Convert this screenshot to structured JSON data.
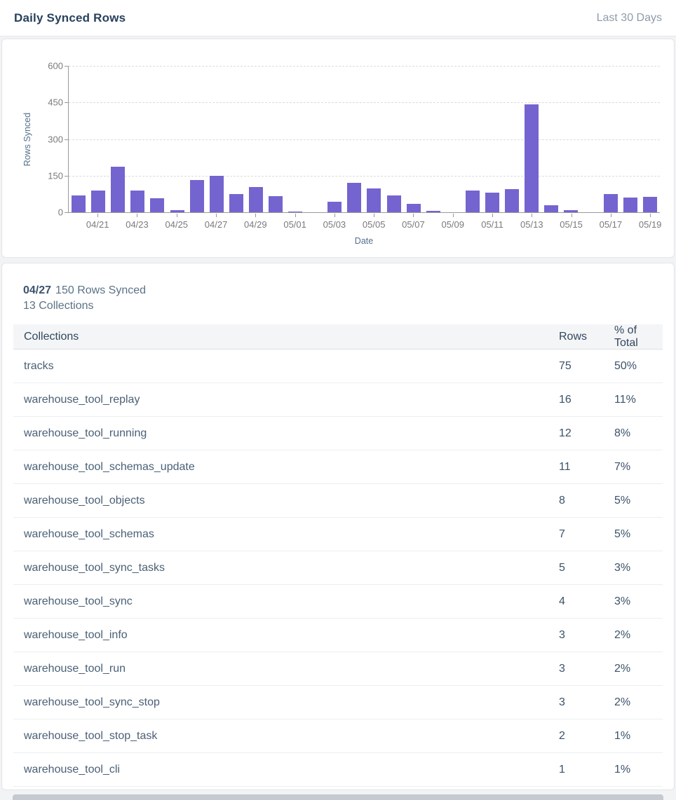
{
  "header": {
    "title": "Daily Synced Rows",
    "range_label": "Last 30 Days"
  },
  "chart_data": {
    "type": "bar",
    "title": "Daily Synced Rows",
    "xlabel": "Date",
    "ylabel": "Rows Synced",
    "ylim": [
      0,
      600
    ],
    "yticks": [
      600,
      450,
      300,
      150,
      0
    ],
    "grid": true,
    "legend": "none",
    "bar_color": "#7464d0",
    "x": [
      "04/20",
      "04/21",
      "04/22",
      "04/23",
      "04/24",
      "04/25",
      "04/26",
      "04/27",
      "04/28",
      "04/29",
      "04/30",
      "05/01",
      "05/02",
      "05/03",
      "05/04",
      "05/05",
      "05/06",
      "05/07",
      "05/08",
      "05/09",
      "05/10",
      "05/11",
      "05/12",
      "05/13",
      "05/14",
      "05/15",
      "05/16",
      "05/17",
      "05/18",
      "05/19"
    ],
    "values": [
      70,
      88,
      188,
      88,
      57,
      10,
      132,
      150,
      75,
      104,
      67,
      3,
      0,
      44,
      120,
      99,
      69,
      34,
      6,
      0,
      88,
      80,
      95,
      443,
      30,
      8,
      0,
      75,
      60,
      62
    ],
    "x_ticks_shown": [
      "04/21",
      "04/23",
      "04/25",
      "04/27",
      "04/29",
      "05/01",
      "05/03",
      "05/05",
      "05/07",
      "05/09",
      "05/11",
      "05/13",
      "05/15",
      "05/17",
      "05/19"
    ]
  },
  "detail": {
    "date": "04/27",
    "rows_synced_label": "150 Rows Synced",
    "collections_label": "13 Collections"
  },
  "table": {
    "columns": [
      "Collections",
      "Rows",
      "% of Total"
    ],
    "rows": [
      {
        "collection": "tracks",
        "rows": 75,
        "pct": "50%"
      },
      {
        "collection": "warehouse_tool_replay",
        "rows": 16,
        "pct": "11%"
      },
      {
        "collection": "warehouse_tool_running",
        "rows": 12,
        "pct": "8%"
      },
      {
        "collection": "warehouse_tool_schemas_update",
        "rows": 11,
        "pct": "7%"
      },
      {
        "collection": "warehouse_tool_objects",
        "rows": 8,
        "pct": "5%"
      },
      {
        "collection": "warehouse_tool_schemas",
        "rows": 7,
        "pct": "5%"
      },
      {
        "collection": "warehouse_tool_sync_tasks",
        "rows": 5,
        "pct": "3%"
      },
      {
        "collection": "warehouse_tool_sync",
        "rows": 4,
        "pct": "3%"
      },
      {
        "collection": "warehouse_tool_info",
        "rows": 3,
        "pct": "2%"
      },
      {
        "collection": "warehouse_tool_run",
        "rows": 3,
        "pct": "2%"
      },
      {
        "collection": "warehouse_tool_sync_stop",
        "rows": 3,
        "pct": "2%"
      },
      {
        "collection": "warehouse_tool_stop_task",
        "rows": 2,
        "pct": "1%"
      },
      {
        "collection": "warehouse_tool_cli",
        "rows": 1,
        "pct": "1%"
      }
    ]
  }
}
